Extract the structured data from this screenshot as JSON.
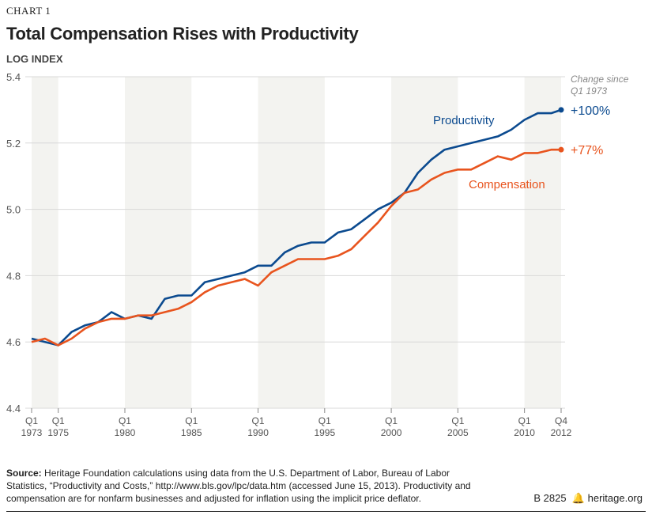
{
  "kicker": "CHART 1",
  "title": "Total Compensation Rises with Productivity",
  "source_label": "Source:",
  "source_text": "Heritage Foundation calculations using data from the U.S. Department of Labor, Bureau of Labor Statistics, “Productivity and Costs,” http://www.bls.gov/lpc/data.htm (accessed June 15, 2013). Productivity and compensation are for nonfarm businesses and adjusted for inflation using the implicit price deflator.",
  "report_code": "B 2825",
  "site": "heritage.org",
  "chart_data": {
    "type": "line",
    "title": "Total Compensation Rises with Productivity",
    "ylabel": "LOG INDEX",
    "ylim": [
      4.4,
      5.4
    ],
    "yticks": [
      "4.4",
      "4.6",
      "4.8",
      "5.0",
      "5.2",
      "5.4"
    ],
    "xticks": [
      {
        "q": "Q1",
        "y": "1973",
        "t": 1973.0
      },
      {
        "q": "Q1",
        "y": "1975",
        "t": 1975.0
      },
      {
        "q": "Q1",
        "y": "1980",
        "t": 1980.0
      },
      {
        "q": "Q1",
        "y": "1985",
        "t": 1985.0
      },
      {
        "q": "Q1",
        "y": "1990",
        "t": 1990.0
      },
      {
        "q": "Q1",
        "y": "1995",
        "t": 1995.0
      },
      {
        "q": "Q1",
        "y": "2000",
        "t": 2000.0
      },
      {
        "q": "Q1",
        "y": "2005",
        "t": 2005.0
      },
      {
        "q": "Q1",
        "y": "2010",
        "t": 2010.0
      },
      {
        "q": "Q4",
        "y": "2012",
        "t": 2012.75
      }
    ],
    "shaded_periods": [
      [
        1973,
        1975
      ],
      [
        1980,
        1985
      ],
      [
        1990,
        1995
      ],
      [
        2000,
        2005
      ],
      [
        2010,
        2012.75
      ]
    ],
    "grid": true,
    "change_header": [
      "Change since",
      "Q1 1973"
    ],
    "x": [
      1973,
      1974,
      1975,
      1976,
      1977,
      1978,
      1979,
      1980,
      1981,
      1982,
      1983,
      1984,
      1985,
      1986,
      1987,
      1988,
      1989,
      1990,
      1991,
      1992,
      1993,
      1994,
      1995,
      1996,
      1997,
      1998,
      1999,
      2000,
      2001,
      2002,
      2003,
      2004,
      2005,
      2006,
      2007,
      2008,
      2009,
      2010,
      2011,
      2012,
      2012.75
    ],
    "series": [
      {
        "name": "Productivity",
        "color": "#0b4a8f",
        "change": "+100%",
        "values": [
          4.61,
          4.6,
          4.59,
          4.63,
          4.65,
          4.66,
          4.69,
          4.67,
          4.68,
          4.67,
          4.73,
          4.74,
          4.74,
          4.78,
          4.79,
          4.8,
          4.81,
          4.83,
          4.83,
          4.87,
          4.89,
          4.9,
          4.9,
          4.93,
          4.94,
          4.97,
          5.0,
          5.02,
          5.05,
          5.11,
          5.15,
          5.18,
          5.19,
          5.2,
          5.21,
          5.22,
          5.24,
          5.27,
          5.29,
          5.29,
          5.3
        ]
      },
      {
        "name": "Compensation",
        "color": "#e8541e",
        "change": "+77%",
        "values": [
          4.6,
          4.61,
          4.59,
          4.61,
          4.64,
          4.66,
          4.67,
          4.67,
          4.68,
          4.68,
          4.69,
          4.7,
          4.72,
          4.75,
          4.77,
          4.78,
          4.79,
          4.77,
          4.81,
          4.83,
          4.85,
          4.85,
          4.85,
          4.86,
          4.88,
          4.92,
          4.96,
          5.01,
          5.05,
          5.06,
          5.09,
          5.11,
          5.12,
          5.12,
          5.14,
          5.16,
          5.15,
          5.17,
          5.17,
          5.18,
          5.18
        ]
      }
    ]
  }
}
